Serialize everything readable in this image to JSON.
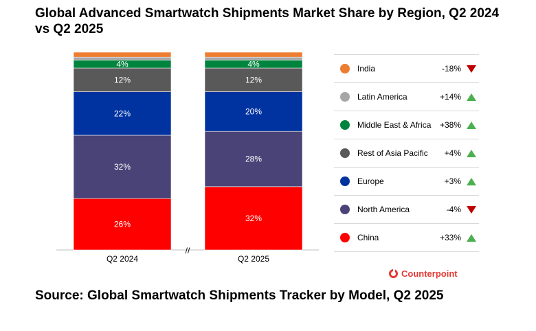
{
  "title": "Global Advanced Smartwatch Shipments Market Share by Region, Q2 2024 vs Q2 2025",
  "source": "Source: Global Smartwatch Shipments Tracker by Model, Q2 2025",
  "brand": "Counterpoint",
  "watermark": "Counterpoint",
  "axis_break": "//",
  "chart_data": {
    "type": "bar",
    "stacked": true,
    "percent": true,
    "title": "Global Advanced Smartwatch Shipments Market Share by Region, Q2 2024 vs Q2 2025",
    "categories": [
      "Q2 2024",
      "Q2 2025"
    ],
    "xlabel": "",
    "ylabel": "",
    "ylim": [
      0,
      100
    ],
    "grid": false,
    "legend_position": "right",
    "series": [
      {
        "name": "China",
        "color": "#ff0000",
        "values": [
          26,
          32
        ],
        "labels": [
          "26%",
          "32%"
        ],
        "change": "+33%",
        "trend": "up"
      },
      {
        "name": "North America",
        "color": "#4a4377",
        "values": [
          32,
          28
        ],
        "labels": [
          "32%",
          "28%"
        ],
        "change": "-4%",
        "trend": "down"
      },
      {
        "name": "Europe",
        "color": "#0033a0",
        "values": [
          22,
          20
        ],
        "labels": [
          "22%",
          "20%"
        ],
        "change": "+3%",
        "trend": "up"
      },
      {
        "name": "Rest of Asia Pacific",
        "color": "#595959",
        "values": [
          12,
          12
        ],
        "labels": [
          "12%",
          "12%"
        ],
        "change": "+4%",
        "trend": "up"
      },
      {
        "name": "Middle East & Africa",
        "color": "#00843d",
        "values": [
          4,
          4
        ],
        "labels": [
          "4%",
          "4%"
        ],
        "change": "+38%",
        "trend": "up"
      },
      {
        "name": "Latin America",
        "color": "#a6a6a6",
        "values": [
          1.5,
          1.5
        ],
        "labels": [
          "",
          ""
        ],
        "change": "+14%",
        "trend": "up"
      },
      {
        "name": "India",
        "color": "#ed7d31",
        "values": [
          2.5,
          2.5
        ],
        "labels": [
          "",
          ""
        ],
        "change": "-18%",
        "trend": "down"
      }
    ]
  }
}
